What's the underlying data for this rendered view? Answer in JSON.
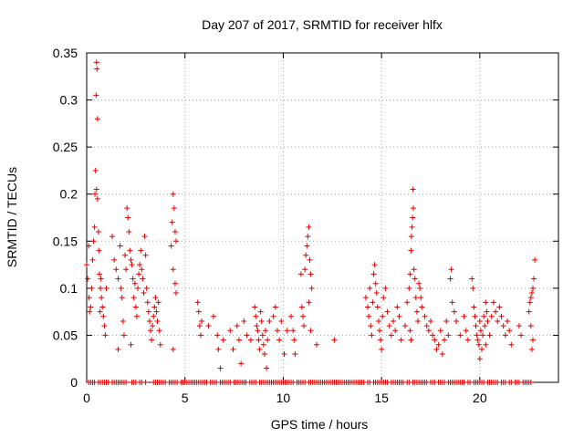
{
  "chart_data": {
    "type": "scatter",
    "title": "Day 207 of 2017, SRMTID for receiver hlfx",
    "xlabel": "GPS time / hours",
    "ylabel": "SRMTID / TECUs",
    "xlim": [
      0,
      24
    ],
    "ylim": [
      0,
      0.35
    ],
    "xticks": [
      0,
      5,
      10,
      15,
      20
    ],
    "xtick_labels": [
      "0",
      "5",
      "10",
      "15",
      "20"
    ],
    "yticks": [
      0,
      0.05,
      0.1,
      0.15,
      0.2,
      0.25,
      0.3,
      0.35
    ],
    "ytick_labels": [
      "0",
      "0.05",
      "0.1",
      "0.15",
      "0.2",
      "0.25",
      "0.3",
      "0.35"
    ],
    "grid": true,
    "marker": "+",
    "series_color": "#e00000",
    "series": [
      {
        "name": "SRMTID",
        "points": [
          [
            0.0,
            0.125
          ],
          [
            0.05,
            0.11
          ],
          [
            0.1,
            0.145
          ],
          [
            0.12,
            0.09
          ],
          [
            0.15,
            0.075
          ],
          [
            0.2,
            0.08
          ],
          [
            0.25,
            0.1
          ],
          [
            0.3,
            0.13
          ],
          [
            0.35,
            0.15
          ],
          [
            0.4,
            0.165
          ],
          [
            0.42,
            0.2
          ],
          [
            0.45,
            0.225
          ],
          [
            0.48,
            0.305
          ],
          [
            0.5,
            0.34
          ],
          [
            0.52,
            0.333
          ],
          [
            0.55,
            0.28
          ],
          [
            0.5,
            0.205
          ],
          [
            0.55,
            0.195
          ],
          [
            0.6,
            0.16
          ],
          [
            0.62,
            0.14
          ],
          [
            0.65,
            0.115
          ],
          [
            0.7,
            0.1
          ],
          [
            0.75,
            0.09
          ],
          [
            0.8,
            0.08
          ],
          [
            0.85,
            0.07
          ],
          [
            0.9,
            0.06
          ],
          [
            0.95,
            0.05
          ],
          [
            1.0,
            0.1
          ],
          [
            0.68,
            0.075
          ],
          [
            0.72,
            0.11
          ],
          [
            1.3,
            0.155
          ],
          [
            1.4,
            0.13
          ],
          [
            1.5,
            0.12
          ],
          [
            1.6,
            0.11
          ],
          [
            1.7,
            0.145
          ],
          [
            1.75,
            0.1
          ],
          [
            1.8,
            0.09
          ],
          [
            1.85,
            0.065
          ],
          [
            1.9,
            0.05
          ],
          [
            1.95,
            0.135
          ],
          [
            2.0,
            0.12
          ],
          [
            2.05,
            0.185
          ],
          [
            2.1,
            0.175
          ],
          [
            2.15,
            0.16
          ],
          [
            2.2,
            0.14
          ],
          [
            2.25,
            0.13
          ],
          [
            2.3,
            0.125
          ],
          [
            2.35,
            0.11
          ],
          [
            2.4,
            0.09
          ],
          [
            2.45,
            0.105
          ],
          [
            2.5,
            0.08
          ],
          [
            2.55,
            0.07
          ],
          [
            2.6,
            0.1
          ],
          [
            2.65,
            0.115
          ],
          [
            2.7,
            0.125
          ],
          [
            2.75,
            0.14
          ],
          [
            2.8,
            0.12
          ],
          [
            2.85,
            0.11
          ],
          [
            2.9,
            0.095
          ],
          [
            2.95,
            0.155
          ],
          [
            3.0,
            0.135
          ],
          [
            3.05,
            0.1
          ],
          [
            3.1,
            0.085
          ],
          [
            3.15,
            0.075
          ],
          [
            3.2,
            0.065
          ],
          [
            3.25,
            0.055
          ],
          [
            3.3,
            0.045
          ],
          [
            3.35,
            0.06
          ],
          [
            3.4,
            0.07
          ],
          [
            3.45,
            0.08
          ],
          [
            3.5,
            0.09
          ],
          [
            3.55,
            0.075
          ],
          [
            3.6,
            0.065
          ],
          [
            3.65,
            0.085
          ],
          [
            3.7,
            0.055
          ],
          [
            3.75,
            0.04
          ],
          [
            2.25,
            0.04
          ],
          [
            1.6,
            0.035
          ],
          [
            4.3,
            0.145
          ],
          [
            4.35,
            0.17
          ],
          [
            4.4,
            0.2
          ],
          [
            4.45,
            0.185
          ],
          [
            4.5,
            0.16
          ],
          [
            4.55,
            0.15
          ],
          [
            4.4,
            0.12
          ],
          [
            4.5,
            0.105
          ],
          [
            4.55,
            0.095
          ],
          [
            4.4,
            0.035
          ],
          [
            5.65,
            0.085
          ],
          [
            5.7,
            0.075
          ],
          [
            5.75,
            0.06
          ],
          [
            5.8,
            0.05
          ],
          [
            5.85,
            0.065
          ],
          [
            6.2,
            0.06
          ],
          [
            6.45,
            0.07
          ],
          [
            6.65,
            0.05
          ],
          [
            6.7,
            0.035
          ],
          [
            6.8,
            0.015
          ],
          [
            6.95,
            0.045
          ],
          [
            7.3,
            0.055
          ],
          [
            7.45,
            0.035
          ],
          [
            7.65,
            0.06
          ],
          [
            7.75,
            0.045
          ],
          [
            7.85,
            0.02
          ],
          [
            8.0,
            0.065
          ],
          [
            8.15,
            0.05
          ],
          [
            8.35,
            0.045
          ],
          [
            8.55,
            0.08
          ],
          [
            8.6,
            0.07
          ],
          [
            8.65,
            0.06
          ],
          [
            8.7,
            0.055
          ],
          [
            8.75,
            0.045
          ],
          [
            8.8,
            0.035
          ],
          [
            8.85,
            0.075
          ],
          [
            8.9,
            0.065
          ],
          [
            8.95,
            0.05
          ],
          [
            9.0,
            0.04
          ],
          [
            9.05,
            0.03
          ],
          [
            9.1,
            0.055
          ],
          [
            9.15,
            0.015
          ],
          [
            9.2,
            0.045
          ],
          [
            9.3,
            0.065
          ],
          [
            9.5,
            0.07
          ],
          [
            9.6,
            0.08
          ],
          [
            9.7,
            0.055
          ],
          [
            9.8,
            0.045
          ],
          [
            9.9,
            0.065
          ],
          [
            10.05,
            0.03
          ],
          [
            10.2,
            0.055
          ],
          [
            10.4,
            0.07
          ],
          [
            10.5,
            0.055
          ],
          [
            10.55,
            0.045
          ],
          [
            10.6,
            0.03
          ],
          [
            10.9,
            0.115
          ],
          [
            10.95,
            0.08
          ],
          [
            11.0,
            0.07
          ],
          [
            11.05,
            0.06
          ],
          [
            11.1,
            0.12
          ],
          [
            11.15,
            0.135
          ],
          [
            11.2,
            0.145
          ],
          [
            11.25,
            0.155
          ],
          [
            11.3,
            0.165
          ],
          [
            11.35,
            0.13
          ],
          [
            11.4,
            0.115
          ],
          [
            11.45,
            0.1
          ],
          [
            11.3,
            0.085
          ],
          [
            11.4,
            0.055
          ],
          [
            11.7,
            0.04
          ],
          [
            12.6,
            0.045
          ],
          [
            14.2,
            0.09
          ],
          [
            14.3,
            0.08
          ],
          [
            14.35,
            0.07
          ],
          [
            14.4,
            0.1
          ],
          [
            14.45,
            0.06
          ],
          [
            14.5,
            0.05
          ],
          [
            14.55,
            0.085
          ],
          [
            14.6,
            0.115
          ],
          [
            14.65,
            0.125
          ],
          [
            14.7,
            0.105
          ],
          [
            14.75,
            0.095
          ],
          [
            14.8,
            0.08
          ],
          [
            14.85,
            0.065
          ],
          [
            14.9,
            0.055
          ],
          [
            14.95,
            0.045
          ],
          [
            15.0,
            0.035
          ],
          [
            15.05,
            0.07
          ],
          [
            15.1,
            0.09
          ],
          [
            15.2,
            0.1
          ],
          [
            15.3,
            0.075
          ],
          [
            15.4,
            0.06
          ],
          [
            15.5,
            0.05
          ],
          [
            15.6,
            0.065
          ],
          [
            15.7,
            0.055
          ],
          [
            15.8,
            0.08
          ],
          [
            15.9,
            0.07
          ],
          [
            16.0,
            0.045
          ],
          [
            16.2,
            0.06
          ],
          [
            16.3,
            0.085
          ],
          [
            16.4,
            0.1
          ],
          [
            16.45,
            0.115
          ],
          [
            16.5,
            0.14
          ],
          [
            16.52,
            0.155
          ],
          [
            16.55,
            0.165
          ],
          [
            16.58,
            0.175
          ],
          [
            16.6,
            0.205
          ],
          [
            16.62,
            0.185
          ],
          [
            16.65,
            0.12
          ],
          [
            16.7,
            0.11
          ],
          [
            16.75,
            0.09
          ],
          [
            16.8,
            0.075
          ],
          [
            16.85,
            0.065
          ],
          [
            16.9,
            0.105
          ],
          [
            16.95,
            0.1
          ],
          [
            17.0,
            0.09
          ],
          [
            17.05,
            0.08
          ],
          [
            16.45,
            0.055
          ],
          [
            16.5,
            0.045
          ],
          [
            17.2,
            0.07
          ],
          [
            17.3,
            0.06
          ],
          [
            17.4,
            0.055
          ],
          [
            17.5,
            0.065
          ],
          [
            17.6,
            0.05
          ],
          [
            17.7,
            0.045
          ],
          [
            17.8,
            0.035
          ],
          [
            17.9,
            0.04
          ],
          [
            18.0,
            0.055
          ],
          [
            18.1,
            0.03
          ],
          [
            18.2,
            0.045
          ],
          [
            18.3,
            0.065
          ],
          [
            18.4,
            0.05
          ],
          [
            18.5,
            0.11
          ],
          [
            18.55,
            0.12
          ],
          [
            18.6,
            0.085
          ],
          [
            18.7,
            0.075
          ],
          [
            18.8,
            0.065
          ],
          [
            19.0,
            0.05
          ],
          [
            19.2,
            0.07
          ],
          [
            19.3,
            0.055
          ],
          [
            19.4,
            0.045
          ],
          [
            19.6,
            0.11
          ],
          [
            19.65,
            0.1
          ],
          [
            19.7,
            0.08
          ],
          [
            19.75,
            0.07
          ],
          [
            19.8,
            0.06
          ],
          [
            19.85,
            0.05
          ],
          [
            19.9,
            0.045
          ],
          [
            19.95,
            0.04
          ],
          [
            20.0,
            0.065
          ],
          [
            20.05,
            0.055
          ],
          [
            20.1,
            0.035
          ],
          [
            20.15,
            0.05
          ],
          [
            20.2,
            0.07
          ],
          [
            20.25,
            0.06
          ],
          [
            20.3,
            0.085
          ],
          [
            20.35,
            0.075
          ],
          [
            20.4,
            0.065
          ],
          [
            20.5,
            0.05
          ],
          [
            20.6,
            0.07
          ],
          [
            20.7,
            0.085
          ],
          [
            20.8,
            0.075
          ],
          [
            20.9,
            0.065
          ],
          [
            21.0,
            0.08
          ],
          [
            21.1,
            0.07
          ],
          [
            21.2,
            0.06
          ],
          [
            21.3,
            0.05
          ],
          [
            21.4,
            0.065
          ],
          [
            21.5,
            0.055
          ],
          [
            21.6,
            0.04
          ],
          [
            20.0,
            0.025
          ],
          [
            20.3,
            0.04
          ],
          [
            22.0,
            0.06
          ],
          [
            22.1,
            0.05
          ],
          [
            22.5,
            0.075
          ],
          [
            22.55,
            0.085
          ],
          [
            22.6,
            0.09
          ],
          [
            22.65,
            0.095
          ],
          [
            22.7,
            0.1
          ],
          [
            22.75,
            0.11
          ],
          [
            22.8,
            0.13
          ],
          [
            22.6,
            0.06
          ],
          [
            22.7,
            0.045
          ],
          [
            22.65,
            0.035
          ]
        ]
      }
    ],
    "zero_points_x": [
      0.1,
      0.2,
      0.3,
      0.4,
      0.6,
      0.7,
      0.8,
      0.9,
      1.0,
      1.1,
      1.3,
      1.4,
      1.5,
      1.6,
      1.7,
      1.8,
      1.9,
      2.0,
      2.3,
      2.4,
      2.5,
      2.7,
      2.8,
      3.0,
      3.4,
      3.5,
      3.6,
      3.7,
      3.8,
      3.9,
      4.0,
      4.2,
      4.3,
      4.4,
      4.5,
      4.6,
      4.8,
      4.9,
      5.0,
      5.1,
      5.2,
      5.3,
      5.4,
      5.5,
      5.6,
      5.7,
      5.8,
      5.9,
      6.0,
      6.1,
      6.3,
      6.4,
      6.5,
      6.6,
      6.8,
      6.9,
      7.0,
      7.1,
      7.2,
      7.3,
      7.5,
      7.6,
      7.7,
      7.8,
      7.9,
      8.0,
      8.1,
      8.3,
      8.4,
      8.5,
      8.6,
      8.8,
      8.9,
      9.0,
      9.1,
      9.2,
      9.3,
      9.4,
      9.5,
      9.6,
      9.7,
      9.8,
      9.9,
      10.0,
      10.1,
      10.2,
      10.3,
      10.4,
      10.5,
      10.7,
      10.8,
      10.9,
      11.0,
      11.1,
      11.3,
      11.4,
      11.5,
      11.6,
      11.7,
      11.8,
      11.9,
      12.0,
      12.1,
      12.2,
      12.3,
      12.4,
      12.5,
      12.6,
      12.7,
      12.8,
      12.9,
      13.0,
      13.1,
      13.2,
      13.3,
      13.4,
      13.5,
      13.6,
      13.7,
      13.8,
      13.9,
      14.0,
      14.1,
      14.3,
      14.4,
      14.6,
      14.7,
      14.8,
      14.9,
      15.0,
      15.1,
      15.2,
      15.3,
      15.5,
      15.6,
      15.7,
      15.8,
      15.9,
      16.0,
      16.1,
      16.3,
      16.4,
      16.6,
      16.7,
      16.8,
      16.9,
      17.0,
      17.1,
      17.2,
      17.3,
      17.5,
      17.6,
      17.7,
      17.9,
      18.0,
      18.1,
      18.2,
      18.4,
      18.5,
      18.6,
      18.7,
      18.8,
      18.9,
      19.0,
      19.1,
      19.2,
      19.4,
      19.5,
      19.7,
      19.8,
      19.9,
      20.0,
      20.1,
      20.2,
      20.4,
      20.5,
      20.6,
      20.7,
      20.8,
      20.9,
      21.1,
      21.2,
      21.3,
      21.5,
      21.6,
      21.8,
      21.9,
      22.0,
      22.2,
      22.3,
      22.4,
      22.5,
      22.6
    ]
  }
}
